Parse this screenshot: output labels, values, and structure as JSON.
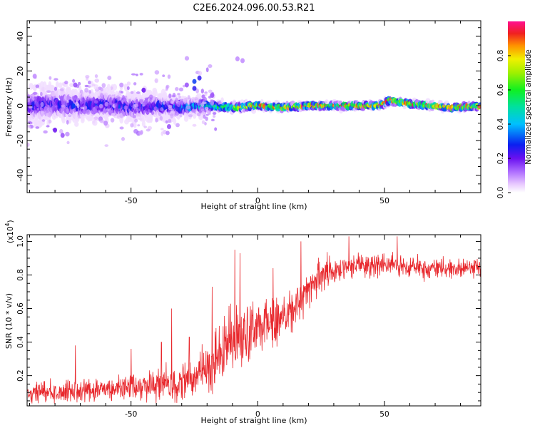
{
  "figure_title": "C2E6.2024.096.00.53.R21",
  "chart_data": [
    {
      "type": "heatmap",
      "title": "C2E6.2024.096.00.53.R21",
      "xlabel": "Height of straight line (km)",
      "ylabel": "Frequency (Hz)",
      "xlim": [
        -91,
        88
      ],
      "ylim": [
        -50,
        49
      ],
      "x_ticks": [
        -50,
        0,
        50
      ],
      "y_ticks": [
        -40,
        -20,
        0,
        20,
        40
      ],
      "colorbar": {
        "label": "Normalized spectral amplitude",
        "range": [
          0,
          1
        ],
        "ticks": [
          0.0,
          0.2,
          0.4,
          0.6,
          0.8
        ],
        "tick_labels": [
          "0.0",
          "0.2",
          "0.4",
          "0.6",
          "0.8"
        ]
      },
      "band_center_profile": [
        {
          "x": -91,
          "y": 0
        },
        {
          "x": -80,
          "y": 1
        },
        {
          "x": -70,
          "y": 0
        },
        {
          "x": -60,
          "y": 1
        },
        {
          "x": -50,
          "y": -1
        },
        {
          "x": -40,
          "y": 0
        },
        {
          "x": -30,
          "y": -1
        },
        {
          "x": -22,
          "y": 0
        },
        {
          "x": -10,
          "y": -1
        },
        {
          "x": 0,
          "y": 0
        },
        {
          "x": 10,
          "y": -1
        },
        {
          "x": 20,
          "y": 0
        },
        {
          "x": 30,
          "y": 0
        },
        {
          "x": 40,
          "y": 0
        },
        {
          "x": 48,
          "y": 0
        },
        {
          "x": 52,
          "y": 3
        },
        {
          "x": 60,
          "y": 1
        },
        {
          "x": 70,
          "y": 0
        },
        {
          "x": 76,
          "y": -1
        },
        {
          "x": 88,
          "y": 0
        }
      ],
      "band_halfwidth_profile": [
        {
          "x": -91,
          "y": 6
        },
        {
          "x": -60,
          "y": 5
        },
        {
          "x": -40,
          "y": 4
        },
        {
          "x": -22,
          "y": 2.5
        },
        {
          "x": 0,
          "y": 1.5
        },
        {
          "x": 40,
          "y": 1.5
        },
        {
          "x": 88,
          "y": 1.5
        }
      ],
      "peak_amplitude_profile": [
        {
          "x": -91,
          "y": 0.25
        },
        {
          "x": -60,
          "y": 0.3
        },
        {
          "x": -40,
          "y": 0.3
        },
        {
          "x": -22,
          "y": 0.5
        },
        {
          "x": -10,
          "y": 0.7
        },
        {
          "x": 0,
          "y": 0.95
        },
        {
          "x": 20,
          "y": 0.95
        },
        {
          "x": 88,
          "y": 0.95
        }
      ],
      "outliers": [
        {
          "x": -88,
          "y": 17,
          "amplitude": 0.1
        },
        {
          "x": -72,
          "y": 12,
          "amplitude": 0.15
        },
        {
          "x": -45,
          "y": 9,
          "amplitude": 0.2
        },
        {
          "x": -35,
          "y": -12,
          "amplitude": 0.15
        },
        {
          "x": -25,
          "y": 10,
          "amplitude": 0.25
        },
        {
          "x": -25,
          "y": 14,
          "amplitude": 0.3
        },
        {
          "x": -23,
          "y": 16,
          "amplitude": 0.25
        },
        {
          "x": -28,
          "y": 12,
          "amplitude": 0.15
        },
        {
          "x": -8,
          "y": 27,
          "amplitude": 0.1
        },
        {
          "x": -6,
          "y": 26,
          "amplitude": 0.1
        },
        {
          "x": -18,
          "y": 6,
          "amplitude": 0.15
        },
        {
          "x": -80,
          "y": -14,
          "amplitude": 0.2
        },
        {
          "x": -77,
          "y": -17,
          "amplitude": 0.15
        },
        {
          "x": -60,
          "y": -10,
          "amplitude": 0.1
        }
      ]
    },
    {
      "type": "line",
      "xlabel": "Height of straight line (km)",
      "ylabel": "SNR (10 * v/v)",
      "y_multiplier_label": "(x10",
      "y_multiplier_exp": "4",
      "xlim": [
        -91,
        88
      ],
      "ylim": [
        0.02,
        1.04
      ],
      "x_ticks": [
        -50,
        0,
        50
      ],
      "y_ticks": [
        0.2,
        0.4,
        0.6,
        0.8,
        1.0
      ],
      "series": [
        {
          "color": "#e8282d",
          "trend": [
            {
              "x": -91,
              "y": 0.1
            },
            {
              "x": -70,
              "y": 0.11
            },
            {
              "x": -50,
              "y": 0.13
            },
            {
              "x": -40,
              "y": 0.15
            },
            {
              "x": -30,
              "y": 0.17
            },
            {
              "x": -22,
              "y": 0.2
            },
            {
              "x": -15,
              "y": 0.35
            },
            {
              "x": -5,
              "y": 0.45
            },
            {
              "x": 0,
              "y": 0.48
            },
            {
              "x": 10,
              "y": 0.55
            },
            {
              "x": 15,
              "y": 0.6
            },
            {
              "x": 20,
              "y": 0.72
            },
            {
              "x": 25,
              "y": 0.8
            },
            {
              "x": 30,
              "y": 0.83
            },
            {
              "x": 40,
              "y": 0.86
            },
            {
              "x": 50,
              "y": 0.86
            },
            {
              "x": 60,
              "y": 0.85
            },
            {
              "x": 70,
              "y": 0.83
            },
            {
              "x": 80,
              "y": 0.84
            },
            {
              "x": 88,
              "y": 0.85
            }
          ],
          "spread": [
            {
              "x": -91,
              "y": 0.05
            },
            {
              "x": -60,
              "y": 0.06
            },
            {
              "x": -40,
              "y": 0.09
            },
            {
              "x": -25,
              "y": 0.12
            },
            {
              "x": -10,
              "y": 0.18
            },
            {
              "x": 5,
              "y": 0.12
            },
            {
              "x": 20,
              "y": 0.1
            },
            {
              "x": 40,
              "y": 0.06
            },
            {
              "x": 88,
              "y": 0.05
            }
          ],
          "peaks": [
            {
              "x": -72,
              "y": 0.38
            },
            {
              "x": -50,
              "y": 0.36
            },
            {
              "x": -38,
              "y": 0.4
            },
            {
              "x": -34,
              "y": 0.6
            },
            {
              "x": -27,
              "y": 0.43
            },
            {
              "x": -18,
              "y": 0.73
            },
            {
              "x": -9,
              "y": 0.95
            },
            {
              "x": -7,
              "y": 0.93
            },
            {
              "x": -3,
              "y": 0.55
            },
            {
              "x": 6,
              "y": 0.84
            },
            {
              "x": 17,
              "y": 1.0
            },
            {
              "x": 36,
              "y": 1.03
            },
            {
              "x": 55,
              "y": 1.03
            }
          ]
        }
      ]
    }
  ]
}
